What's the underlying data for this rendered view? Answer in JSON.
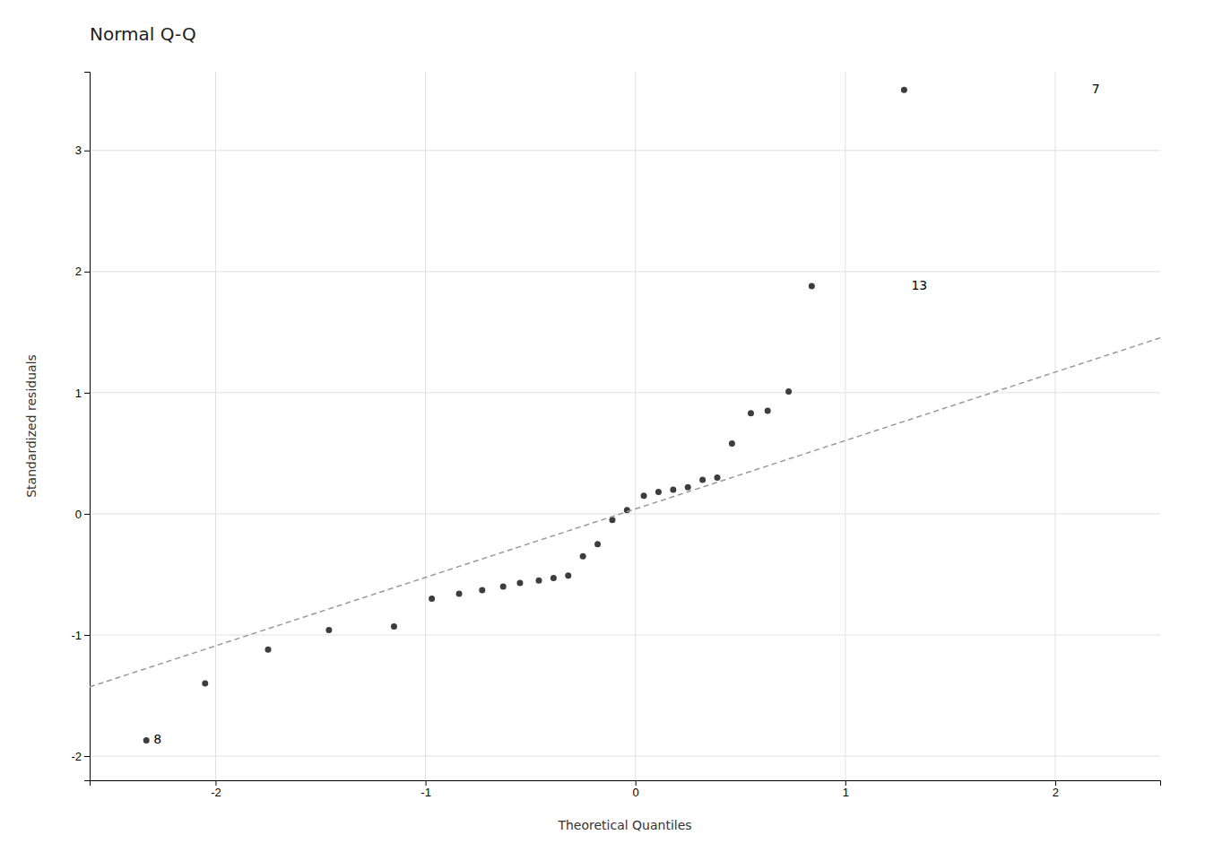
{
  "chart_data": {
    "type": "scatter",
    "title": "Normal Q-Q",
    "xlabel": "Theoretical Quantiles",
    "ylabel": "Standardized residuals",
    "xlim": [
      -2.6,
      2.5
    ],
    "ylim": [
      -2.2,
      3.65
    ],
    "xticks": [
      -2,
      -1,
      0,
      1,
      2
    ],
    "yticks": [
      -2,
      -1,
      0,
      1,
      2,
      3
    ],
    "grid": true,
    "series": [
      {
        "type": "scatter",
        "color": "#3d3d3d",
        "marker": "circle",
        "x": [
          -2.33,
          -2.05,
          -1.75,
          -1.46,
          -1.15,
          -0.97,
          -0.84,
          -0.73,
          -0.63,
          -0.55,
          -0.46,
          -0.39,
          -0.32,
          -0.25,
          -0.18,
          -0.11,
          -0.04,
          0.04,
          0.11,
          0.18,
          0.25,
          0.32,
          0.39,
          0.46,
          0.55,
          0.63,
          0.73,
          0.84,
          1.28
        ],
        "values": [
          -1.87,
          -1.4,
          -1.12,
          -0.96,
          -0.93,
          -0.7,
          -0.66,
          -0.63,
          -0.6,
          -0.57,
          -0.55,
          -0.53,
          -0.51,
          -0.35,
          -0.25,
          -0.05,
          0.03,
          0.15,
          0.18,
          0.2,
          0.22,
          0.28,
          0.3,
          0.58,
          0.83,
          0.85,
          1.01,
          1.88,
          3.5
        ]
      },
      {
        "type": "line",
        "color": "#999999",
        "line_style": "dashed",
        "x": [
          -2.6,
          2.5
        ],
        "values": [
          -1.429,
          1.4525
        ]
      }
    ],
    "annotations": [
      {
        "text": "7",
        "x": 2.14,
        "y": 3.5
      },
      {
        "text": "13",
        "x": 1.28,
        "y": 1.88
      },
      {
        "text": "8",
        "x": -2.33,
        "y": -1.87
      }
    ]
  }
}
